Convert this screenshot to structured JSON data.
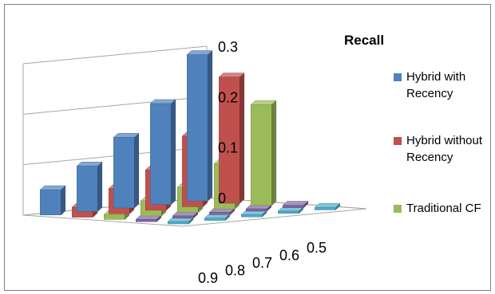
{
  "chart_data": {
    "type": "bar",
    "subtype": "3d-column",
    "title": "Recall",
    "categories": [
      "0.9",
      "0.8",
      "0.7",
      "0.6",
      "0.5"
    ],
    "ylim": [
      0,
      0.3
    ],
    "yticks": [
      "0",
      "0.1",
      "0.2",
      "0.3"
    ],
    "grid": true,
    "legend_position": "right",
    "series": [
      {
        "name": "Hybrid with Recency",
        "color": "#4f81bd",
        "values": [
          0.05,
          0.09,
          0.14,
          0.2,
          0.29
        ]
      },
      {
        "name": "Hybrid without Recency",
        "color": "#c0504d",
        "values": [
          0.02,
          0.05,
          0.08,
          0.14,
          0.25
        ]
      },
      {
        "name": "Traditional CF",
        "color": "#9bbb59",
        "values": [
          0.01,
          0.03,
          0.05,
          0.09,
          0.2
        ]
      },
      {
        "name": "",
        "color": "#8064a2",
        "values": [
          0.003,
          0.003,
          0.003,
          0.003,
          0.003
        ]
      },
      {
        "name": "",
        "color": "#4bacc6",
        "values": [
          0.002,
          0.002,
          0.002,
          0.002,
          0.002
        ]
      }
    ]
  }
}
